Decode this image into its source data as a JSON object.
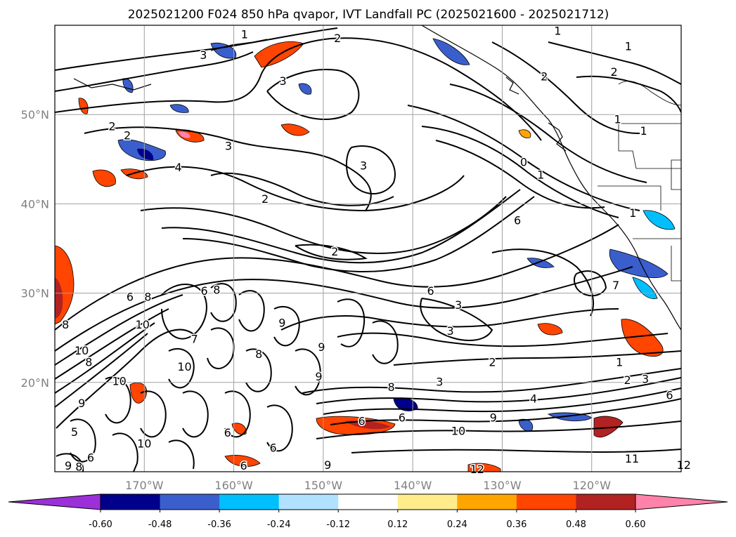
{
  "chart_data": {
    "type": "contour-map",
    "title": "2025021200 F024 850 hPa qvapor, IVT Landfall PC (2025021600 - 2025021712)",
    "x_ticks": [
      "170°W",
      "160°W",
      "150°W",
      "140°W",
      "130°W",
      "120°W"
    ],
    "x_tick_values": [
      -170,
      -160,
      -150,
      -140,
      -130,
      -120
    ],
    "y_ticks": [
      "50°N",
      "40°N",
      "30°N",
      "20°N"
    ],
    "y_tick_values": [
      50,
      40,
      30,
      20
    ],
    "xlim": [
      -180,
      -110
    ],
    "ylim": [
      10,
      60
    ],
    "grid": true,
    "colorbar": {
      "labels": [
        "-0.60",
        "-0.48",
        "-0.36",
        "-0.24",
        "-0.12",
        "0.12",
        "0.24",
        "0.36",
        "0.48",
        "0.60"
      ],
      "levels": [
        -0.6,
        -0.48,
        -0.36,
        -0.24,
        -0.12,
        0.12,
        0.24,
        0.36,
        0.48,
        0.6
      ],
      "colors": [
        "#9b30d8",
        "#00008b",
        "#3a5fcd",
        "#00bfff",
        "#b0e2ff",
        "#ffffff",
        "#ffec8b",
        "#ffa500",
        "#ff4500",
        "#b22222",
        "#ff82ab"
      ],
      "extend": "both"
    },
    "contour_labels": [
      {
        "text": "1",
        "lon": -158.8,
        "lat": 59.0
      },
      {
        "text": "2",
        "lon": -148.4,
        "lat": 58.6
      },
      {
        "text": "3",
        "lon": -163.4,
        "lat": 56.7
      },
      {
        "text": "3",
        "lon": -154.5,
        "lat": 53.8
      },
      {
        "text": "2",
        "lon": -173.6,
        "lat": 48.7
      },
      {
        "text": "2",
        "lon": -171.9,
        "lat": 47.7
      },
      {
        "text": "3",
        "lon": -160.6,
        "lat": 46.5
      },
      {
        "text": "4",
        "lon": -166.2,
        "lat": 44.1
      },
      {
        "text": "3",
        "lon": -145.5,
        "lat": 44.3
      },
      {
        "text": "2",
        "lon": -156.5,
        "lat": 40.6
      },
      {
        "text": "2",
        "lon": -148.7,
        "lat": 34.7
      },
      {
        "text": "2",
        "lon": -125.3,
        "lat": 54.3
      },
      {
        "text": "1",
        "lon": -123.8,
        "lat": 59.4
      },
      {
        "text": "1",
        "lon": -115.9,
        "lat": 57.7
      },
      {
        "text": "2",
        "lon": -117.5,
        "lat": 54.8
      },
      {
        "text": "1",
        "lon": -117.1,
        "lat": 49.5
      },
      {
        "text": "1",
        "lon": -114.2,
        "lat": 48.2
      },
      {
        "text": "0",
        "lon": -127.6,
        "lat": 44.7
      },
      {
        "text": "1",
        "lon": -125.7,
        "lat": 43.3
      },
      {
        "text": "1",
        "lon": -115.4,
        "lat": 39.0
      },
      {
        "text": "6",
        "lon": -128.3,
        "lat": 38.2
      },
      {
        "text": "7",
        "lon": -117.3,
        "lat": 30.9
      },
      {
        "text": "6",
        "lon": -138.0,
        "lat": 30.3
      },
      {
        "text": "3",
        "lon": -134.9,
        "lat": 28.7
      },
      {
        "text": "3",
        "lon": -135.8,
        "lat": 25.8
      },
      {
        "text": "2",
        "lon": -131.1,
        "lat": 22.3
      },
      {
        "text": "1",
        "lon": -116.9,
        "lat": 22.3
      },
      {
        "text": "2",
        "lon": -116.0,
        "lat": 20.3
      },
      {
        "text": "3",
        "lon": -114.0,
        "lat": 20.4
      },
      {
        "text": "6",
        "lon": -111.3,
        "lat": 18.6
      },
      {
        "text": "3",
        "lon": -137.0,
        "lat": 20.1
      },
      {
        "text": "4",
        "lon": -126.5,
        "lat": 18.2
      },
      {
        "text": "9",
        "lon": -131.0,
        "lat": 16.1
      },
      {
        "text": "10",
        "lon": -134.9,
        "lat": 14.6
      },
      {
        "text": "12",
        "lon": -132.8,
        "lat": 10.3
      },
      {
        "text": "11",
        "lon": -115.5,
        "lat": 11.5
      },
      {
        "text": "12",
        "lon": -109.7,
        "lat": 10.8
      },
      {
        "text": "8",
        "lon": -142.4,
        "lat": 19.5
      },
      {
        "text": "6",
        "lon": -141.2,
        "lat": 16.1
      },
      {
        "text": "6",
        "lon": -145.7,
        "lat": 15.7
      },
      {
        "text": "9",
        "lon": -149.5,
        "lat": 10.8
      },
      {
        "text": "9",
        "lon": -150.5,
        "lat": 20.7
      },
      {
        "text": "9",
        "lon": -150.2,
        "lat": 24.0
      },
      {
        "text": "9",
        "lon": -154.6,
        "lat": 26.7
      },
      {
        "text": "8",
        "lon": -157.2,
        "lat": 23.2
      },
      {
        "text": "6",
        "lon": -171.6,
        "lat": 29.6
      },
      {
        "text": "8",
        "lon": -169.6,
        "lat": 29.6
      },
      {
        "text": "6",
        "lon": -163.3,
        "lat": 30.3
      },
      {
        "text": "8",
        "lon": -161.9,
        "lat": 30.4
      },
      {
        "text": "10",
        "lon": -170.2,
        "lat": 26.5
      },
      {
        "text": "7",
        "lon": -164.4,
        "lat": 24.9
      },
      {
        "text": "10",
        "lon": -165.5,
        "lat": 21.8
      },
      {
        "text": "10",
        "lon": -172.8,
        "lat": 20.2
      },
      {
        "text": "8",
        "lon": -178.8,
        "lat": 26.5
      },
      {
        "text": "10",
        "lon": -177.0,
        "lat": 23.6
      },
      {
        "text": "8",
        "lon": -176.2,
        "lat": 22.3
      },
      {
        "text": "9",
        "lon": -177.0,
        "lat": 17.7
      },
      {
        "text": "5",
        "lon": -177.8,
        "lat": 14.5
      },
      {
        "text": "10",
        "lon": -170.0,
        "lat": 13.2
      },
      {
        "text": "6",
        "lon": -176.0,
        "lat": 11.6
      },
      {
        "text": "9",
        "lon": -178.5,
        "lat": 10.7
      },
      {
        "text": "8",
        "lon": -177.3,
        "lat": 10.6
      },
      {
        "text": "6",
        "lon": -160.7,
        "lat": 14.4
      },
      {
        "text": "6",
        "lon": -155.6,
        "lat": 12.7
      },
      {
        "text": "6",
        "lon": -158.9,
        "lat": 10.7
      }
    ]
  }
}
